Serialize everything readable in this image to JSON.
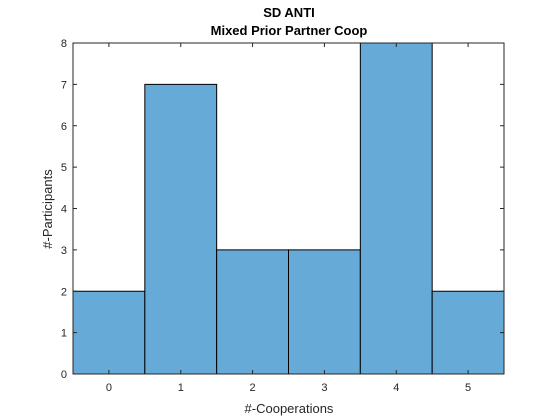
{
  "chart_data": {
    "type": "bar",
    "title": "SD ANTI",
    "subtitle": "Mixed Prior Partner Coop",
    "xlabel": "#-Cooperations",
    "ylabel": "#-Participants",
    "categories": [
      "0",
      "1",
      "2",
      "3",
      "4",
      "5"
    ],
    "x": [
      0,
      1,
      2,
      3,
      4,
      5
    ],
    "values": [
      2,
      7,
      3,
      3,
      8,
      2
    ],
    "xlim": [
      -0.5,
      5.5
    ],
    "ylim": [
      0,
      8
    ],
    "yticks": [
      0,
      1,
      2,
      3,
      4,
      5,
      6,
      7,
      8
    ],
    "xticks": [
      0,
      1,
      2,
      3,
      4,
      5
    ],
    "grid": false,
    "bar_color": "#66aad8",
    "edge_color": "#000000"
  }
}
